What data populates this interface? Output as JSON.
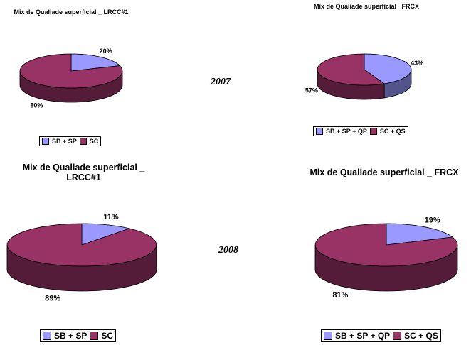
{
  "chart_data": [
    {
      "type": "pie3d",
      "title": "Mix de Qualiade superficial _ LRCC#1",
      "categories": [
        "SB + SP",
        "SC"
      ],
      "values": [
        20,
        80
      ],
      "value_labels": [
        "20%",
        "80%"
      ],
      "colors": [
        "#9999ff",
        "#993366"
      ]
    },
    {
      "type": "pie3d",
      "title": "Mix de Qualiade superficial _FRCX",
      "categories": [
        "SB + SP + QP",
        "SC + QS"
      ],
      "values": [
        43,
        57
      ],
      "value_labels": [
        "43%",
        "57%"
      ],
      "colors": [
        "#9999ff",
        "#993366"
      ]
    },
    {
      "type": "pie3d",
      "title": "Mix de Qualiade superficial _ LRCC#1",
      "categories": [
        "SB + SP",
        "SC"
      ],
      "values": [
        11,
        89
      ],
      "value_labels": [
        "11%",
        "89%"
      ],
      "colors": [
        "#9999ff",
        "#993366"
      ]
    },
    {
      "type": "pie3d",
      "title": "Mix de Qualiade superficial _ FRCX",
      "categories": [
        "SB + SP + QP",
        "SC + QS"
      ],
      "values": [
        19,
        81
      ],
      "value_labels": [
        "19%",
        "81%"
      ],
      "colors": [
        "#9999ff",
        "#993366"
      ]
    }
  ],
  "annotations": [
    "2007",
    "2008"
  ]
}
